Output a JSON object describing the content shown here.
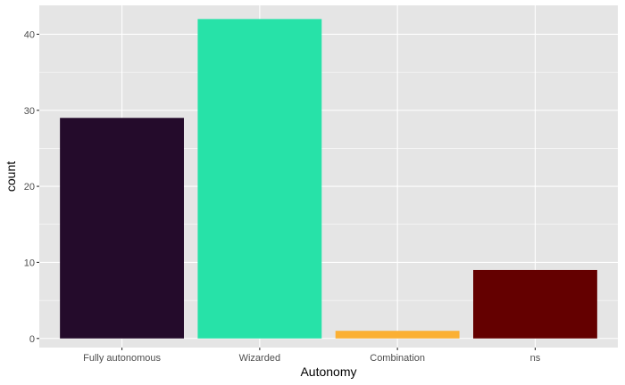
{
  "chart_data": {
    "type": "bar",
    "xlabel": "Autonomy",
    "ylabel": "count",
    "categories": [
      "Fully autonomous",
      "Wizarded",
      "Combination",
      "ns"
    ],
    "values": [
      29,
      42,
      1,
      9
    ],
    "colors": [
      "#240b2b",
      "#27e2a8",
      "#fbb033",
      "#640000"
    ],
    "ylim": [
      -1.2,
      43.8
    ],
    "yticks": [
      0,
      10,
      20,
      30,
      40
    ],
    "ytick_labels": [
      "0",
      "10",
      "20",
      "30",
      "40"
    ],
    "grid": true,
    "legend": "none",
    "panel_background": "#e5e5e5",
    "grid_color": "#ffffff"
  }
}
